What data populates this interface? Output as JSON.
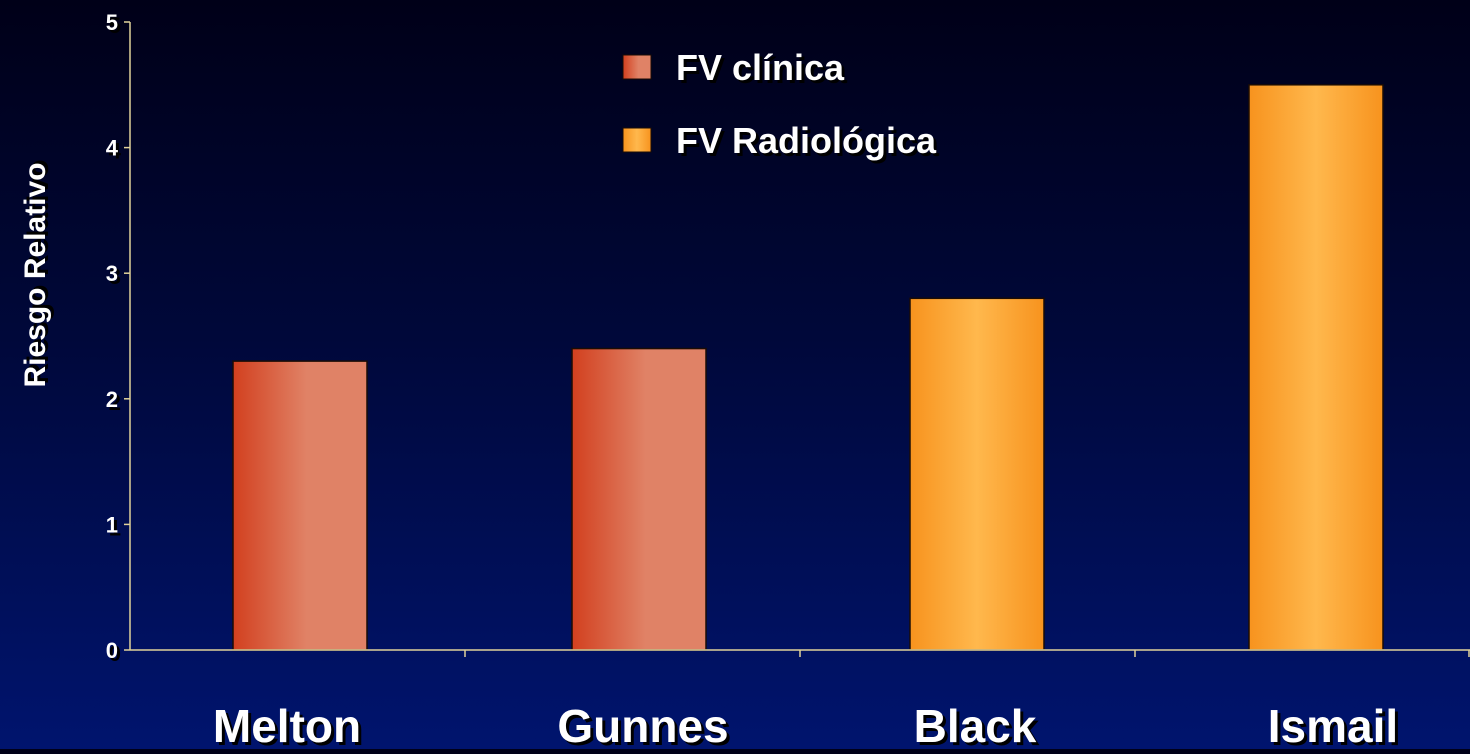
{
  "chart_data": {
    "type": "bar",
    "categories": [
      "Melton",
      "Gunnes",
      "Black",
      "Ismail"
    ],
    "values": [
      2.3,
      2.4,
      2.8,
      4.5
    ],
    "series_assignment": [
      "FV clínica",
      "FV clínica",
      "FV  Radiológica",
      "FV  Radiológica"
    ],
    "series": [
      {
        "name": "FV clínica",
        "color": "#d2401f",
        "color_light": "#e08266"
      },
      {
        "name": "FV  Radiológica",
        "color": "#f7931e",
        "color_light": "#ffb84d"
      }
    ],
    "ylabel": "Riesgo Relativo",
    "xlabel": "",
    "title": "",
    "ylim": [
      0,
      5
    ],
    "yticks": [
      0,
      1,
      2,
      3,
      4,
      5
    ],
    "grid": false,
    "legend_position": "top-center"
  },
  "colors": {
    "axis": "#e0d29a",
    "text": "#ffffff",
    "shadow": "#000000"
  }
}
